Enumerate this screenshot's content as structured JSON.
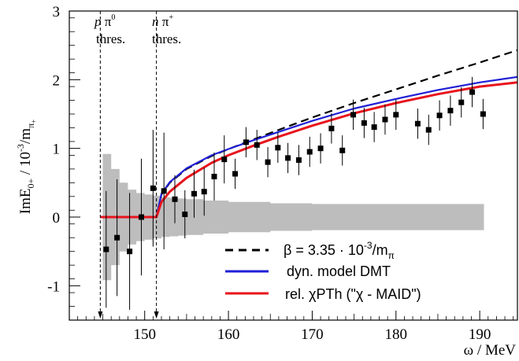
{
  "chart_data": {
    "type": "line",
    "xlabel": "ω / MeV",
    "ylabel": {
      "main": "ImE",
      "main_sub": "0+",
      "mid": " / 10",
      "mid_sup": "-3",
      "tail": "/m",
      "tail_sub": "π",
      "tail_subsub": "+"
    },
    "xlim": [
      141.0,
      194.5
    ],
    "ylim": [
      -1.5,
      3.0
    ],
    "xticks": [
      "150",
      "160",
      "170",
      "180",
      "190"
    ],
    "xtick_values": [
      150,
      160,
      170,
      180,
      190
    ],
    "yticks": [
      "-1",
      "0",
      "1",
      "2",
      "3"
    ],
    "ytick_values": [
      -1,
      0,
      1,
      2,
      3
    ],
    "thresholds": [
      {
        "x": 144.7,
        "label_line1_italic": "p",
        "label_line1_rest": " π",
        "label_line1_sup": "0",
        "label_line2": "thres."
      },
      {
        "x": 151.4,
        "label_line1_italic": "n",
        "label_line1_rest": " π",
        "label_line1_sup": "+",
        "label_line2": "thres."
      }
    ],
    "legend": {
      "placement": "bottom-right",
      "entries": [
        {
          "series": "beta",
          "label": "β = 3.35 · 10",
          "label_sup": "-3",
          "label_tail": "/m",
          "label_sub": "π"
        },
        {
          "series": "dmt",
          "label": "dyn. model DMT"
        },
        {
          "series": "chpt",
          "label": "rel. χPTh (\"χ - MAID\")"
        }
      ]
    },
    "colors": {
      "beta": "#000000",
      "dmt": "#1f1fd6",
      "chpt": "#e8141c",
      "band": "#bdbdbd",
      "points": "#000000"
    },
    "error_band": {
      "x": [
        145.0,
        146.0,
        147.0,
        148.0,
        149.0,
        150.0,
        151.0,
        152.0,
        153.0,
        154.0,
        155.0,
        157.0,
        160.0,
        165.0,
        170.0,
        175.0,
        180.0,
        185.0,
        190.5
      ],
      "half_width": [
        0.92,
        0.7,
        0.5,
        0.4,
        0.35,
        0.33,
        0.31,
        0.29,
        0.28,
        0.27,
        0.26,
        0.24,
        0.22,
        0.2,
        0.19,
        0.19,
        0.19,
        0.19,
        0.19
      ]
    },
    "band_center_offset": [
      0.0,
      0.0,
      0.0,
      0.0,
      0.0,
      0.0,
      0.0,
      0.0,
      0.0,
      0.0,
      0.0,
      0.0,
      0.0,
      0.0,
      0.0,
      0.0,
      0.0,
      0.0,
      0.0
    ],
    "series": [
      {
        "key": "beta",
        "style": "dashed",
        "x": [
          144.7,
          151.4,
          152.0,
          153.0,
          155.0,
          158.0,
          160.0,
          163.0,
          166.0,
          170.0,
          175.0,
          180.0,
          185.0,
          190.0,
          194.5
        ],
        "y": [
          0.0,
          0.0,
          0.33,
          0.5,
          0.7,
          0.89,
          0.99,
          1.13,
          1.27,
          1.45,
          1.66,
          1.86,
          2.06,
          2.25,
          2.43
        ]
      },
      {
        "key": "dmt",
        "style": "solid",
        "x": [
          144.7,
          151.4,
          152.0,
          153.0,
          155.0,
          158.0,
          160.0,
          163.0,
          166.0,
          170.0,
          175.0,
          180.0,
          185.0,
          190.0,
          194.5
        ],
        "y": [
          0.0,
          0.0,
          0.34,
          0.51,
          0.71,
          0.9,
          0.99,
          1.12,
          1.24,
          1.4,
          1.58,
          1.72,
          1.85,
          1.96,
          2.04
        ]
      },
      {
        "key": "chpt",
        "style": "solid",
        "x": [
          144.7,
          151.4,
          152.0,
          153.0,
          155.0,
          158.0,
          160.0,
          163.0,
          166.0,
          170.0,
          175.0,
          180.0,
          185.0,
          190.0,
          194.5
        ],
        "y": [
          0.0,
          0.0,
          0.22,
          0.37,
          0.57,
          0.79,
          0.9,
          1.04,
          1.17,
          1.33,
          1.51,
          1.66,
          1.79,
          1.9,
          1.96
        ]
      }
    ],
    "points": {
      "x": [
        145.4,
        146.7,
        148.2,
        149.6,
        151.0,
        152.3,
        153.6,
        154.8,
        155.9,
        157.1,
        158.3,
        159.5,
        160.8,
        162.1,
        163.4,
        164.7,
        165.9,
        167.1,
        168.4,
        169.7,
        171.0,
        172.3,
        173.6,
        174.9,
        176.2,
        177.4,
        178.7,
        180.0,
        182.6,
        183.9,
        185.2,
        186.5,
        187.8,
        189.1,
        190.4
      ],
      "y": [
        -0.47,
        -0.3,
        -0.5,
        0.0,
        0.42,
        0.38,
        0.26,
        0.04,
        0.34,
        0.37,
        0.59,
        0.84,
        0.63,
        1.09,
        1.05,
        0.8,
        1.01,
        0.86,
        0.83,
        0.95,
        1.0,
        1.29,
        0.97,
        1.49,
        1.37,
        1.31,
        1.42,
        1.49,
        1.36,
        1.27,
        1.48,
        1.55,
        1.67,
        1.82,
        1.5
      ]
    }
  }
}
